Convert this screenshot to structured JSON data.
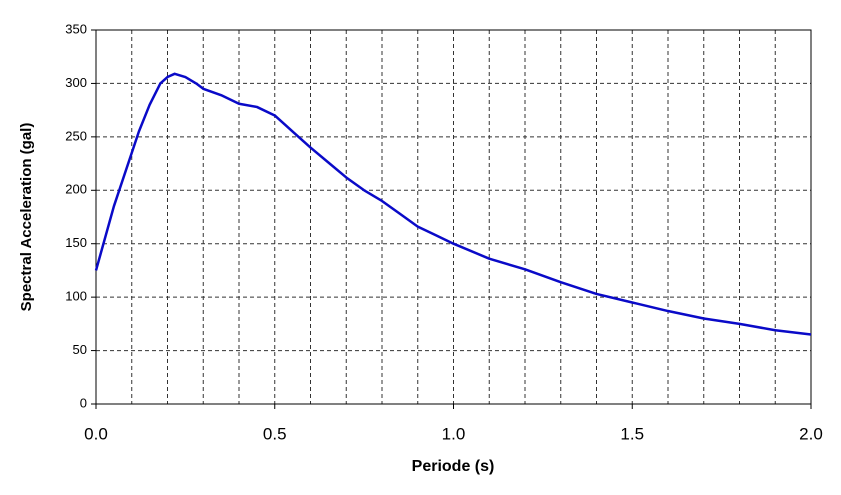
{
  "chart_data": {
    "type": "line",
    "x_label": "Periode (s)",
    "y_label": "Spectral Acceleration (gal)",
    "x": [
      0,
      0.05,
      0.1,
      0.12,
      0.15,
      0.18,
      0.2,
      0.22,
      0.25,
      0.28,
      0.3,
      0.35,
      0.4,
      0.45,
      0.5,
      0.55,
      0.6,
      0.65,
      0.7,
      0.75,
      0.8,
      0.85,
      0.9,
      0.95,
      1.0,
      1.1,
      1.2,
      1.3,
      1.4,
      1.5,
      1.6,
      1.7,
      1.8,
      1.9,
      2.0
    ],
    "series": [
      {
        "color": "#0a0ac8",
        "values": [
          125,
          185,
          235,
          255,
          280,
          300,
          306,
          309,
          306,
          300,
          295,
          289,
          281,
          278,
          270,
          255,
          240,
          226,
          212,
          200,
          190,
          178,
          166,
          158,
          150,
          136,
          126,
          114,
          103,
          95,
          87,
          80,
          75,
          69,
          65
        ]
      }
    ],
    "xlim": [
      0,
      2
    ],
    "xticks": [
      {
        "value": 0,
        "label": "0.0"
      },
      {
        "value": 0.5,
        "label": "0.5"
      },
      {
        "value": 1,
        "label": "1.0"
      },
      {
        "value": 1.5,
        "label": "1.5"
      },
      {
        "value": 2,
        "label": "2.0"
      }
    ],
    "xgrid": [
      0.1,
      0.2,
      0.3,
      0.4,
      0.5,
      0.6,
      0.7,
      0.8,
      0.9,
      1.0,
      1.1,
      1.2,
      1.3,
      1.4,
      1.5,
      1.6,
      1.7,
      1.8,
      1.9
    ],
    "ylim": [
      0,
      350
    ],
    "yticks": [
      0,
      50,
      100,
      150,
      200,
      250,
      300,
      350
    ],
    "grid": true
  }
}
